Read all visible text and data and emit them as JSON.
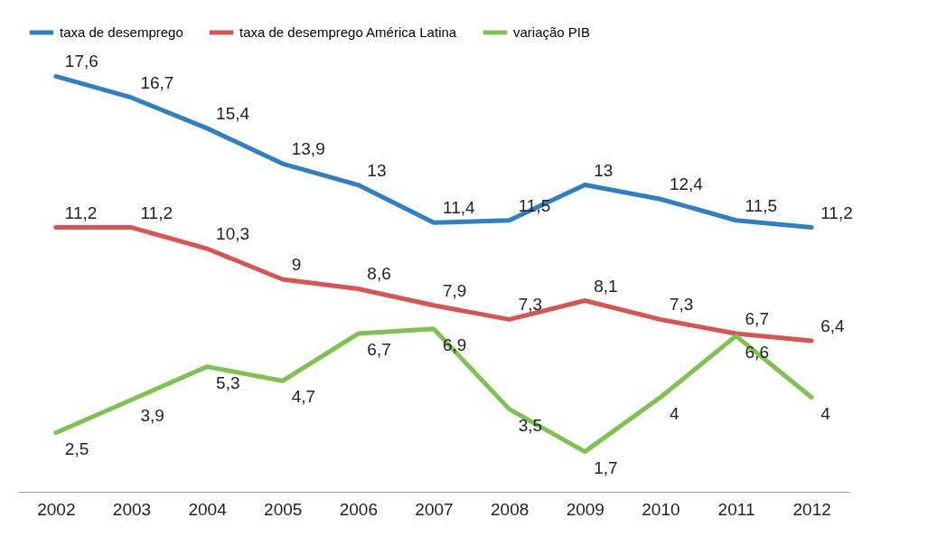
{
  "chart_data": {
    "type": "line",
    "categories": [
      "2002",
      "2003",
      "2004",
      "2005",
      "2006",
      "2007",
      "2008",
      "2009",
      "2010",
      "2011",
      "2012"
    ],
    "series": [
      {
        "name": "taxa de desemprego",
        "color": "#2e7fc4",
        "values": [
          17.6,
          16.7,
          15.4,
          13.9,
          13,
          11.4,
          11.5,
          13,
          12.4,
          11.5,
          11.2
        ],
        "value_labels": [
          "17,6",
          "16,7",
          "15,4",
          "13,9",
          "13",
          "11,4",
          "11,5",
          "13",
          "12,4",
          "11,5",
          "11,2"
        ]
      },
      {
        "name": "taxa de desemprego América Latina",
        "color": "#d9534f",
        "values": [
          11.2,
          11.2,
          10.3,
          9,
          8.6,
          7.9,
          7.3,
          8.1,
          7.3,
          6.7,
          6.4
        ],
        "value_labels": [
          "11,2",
          "11,2",
          "10,3",
          "9",
          "8,6",
          "7,9",
          "7,3",
          "8,1",
          "7,3",
          "6,7",
          "6,4"
        ]
      },
      {
        "name": "variação PIB",
        "color": "#7ec24f",
        "values": [
          2.5,
          3.9,
          5.3,
          4.7,
          6.7,
          6.9,
          3.5,
          1.7,
          4,
          6.6,
          4
        ],
        "value_labels": [
          "2,5",
          "3,9",
          "5,3",
          "4,7",
          "6,7",
          "6,9",
          "3,5",
          "1,7",
          "4",
          "6,6",
          "4"
        ]
      }
    ],
    "legend": "top",
    "grid": false,
    "marker": "none"
  }
}
